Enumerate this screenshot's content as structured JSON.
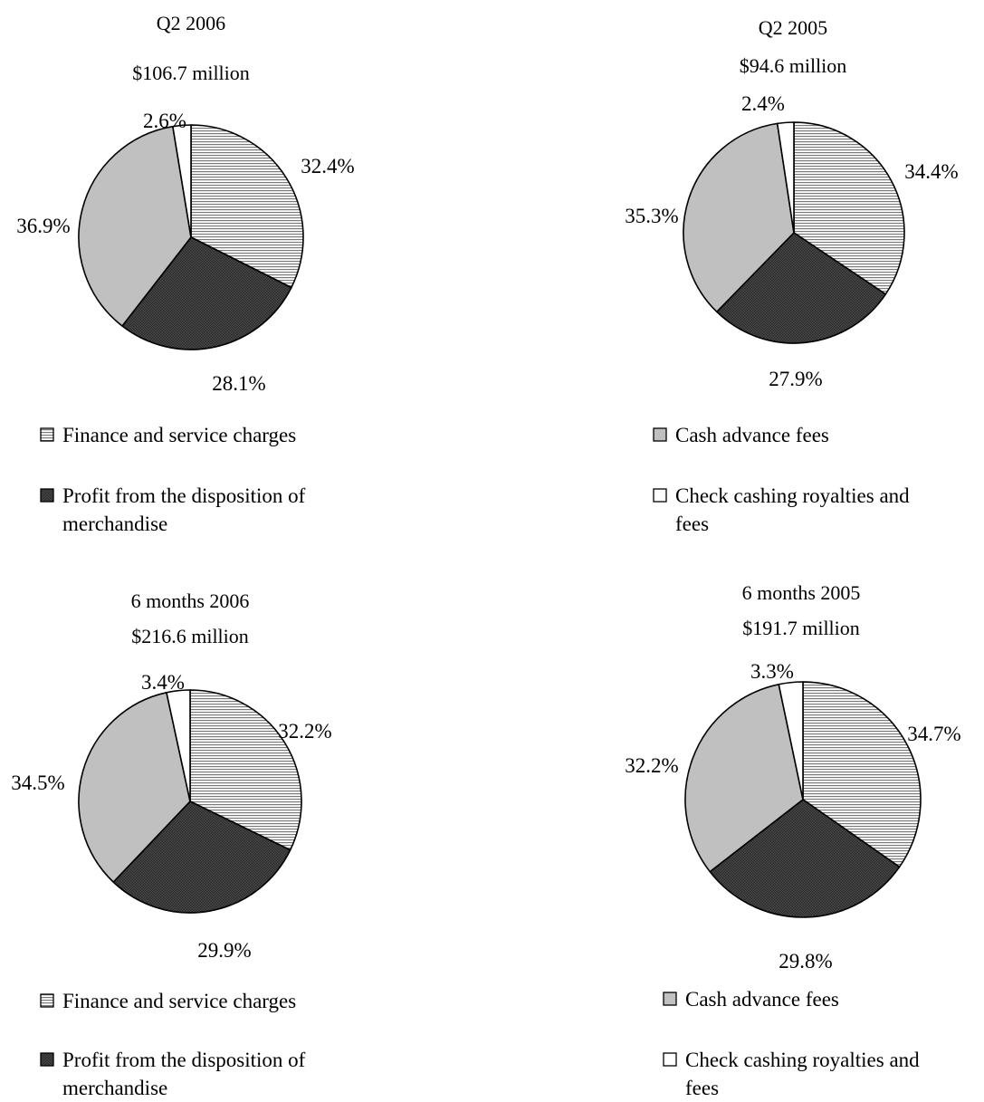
{
  "chart_data": [
    {
      "type": "pie",
      "title": "Q2 2006",
      "subtitle": "$106.7 million",
      "slices": [
        {
          "label": "Finance and service charges",
          "value": 32.4,
          "text": "32.4%"
        },
        {
          "label": "Profit from the disposition of merchandise",
          "value": 28.1,
          "text": "28.1%"
        },
        {
          "label": "Cash advance fees",
          "value": 36.9,
          "text": "36.9%"
        },
        {
          "label": "Check cashing royalties and fees",
          "value": 2.6,
          "text": "2.6%"
        }
      ]
    },
    {
      "type": "pie",
      "title": "Q2 2005",
      "subtitle": "$94.6 million",
      "slices": [
        {
          "label": "Finance and service charges",
          "value": 34.4,
          "text": "34.4%"
        },
        {
          "label": "Profit from the disposition of merchandise",
          "value": 27.9,
          "text": "27.9%"
        },
        {
          "label": "Cash advance fees",
          "value": 35.3,
          "text": "35.3%"
        },
        {
          "label": "Check cashing royalties and fees",
          "value": 2.4,
          "text": "2.4%"
        }
      ]
    },
    {
      "type": "pie",
      "title": "6 months 2006",
      "subtitle": "$216.6 million",
      "slices": [
        {
          "label": "Finance and service charges",
          "value": 32.2,
          "text": "32.2%"
        },
        {
          "label": "Profit from the disposition of merchandise",
          "value": 29.9,
          "text": "29.9%"
        },
        {
          "label": "Cash advance fees",
          "value": 34.5,
          "text": "34.5%"
        },
        {
          "label": "Check cashing royalties and fees",
          "value": 3.4,
          "text": "3.4%"
        }
      ]
    },
    {
      "type": "pie",
      "title": "6 months 2005",
      "subtitle": "$191.7 million",
      "slices": [
        {
          "label": "Finance and service charges",
          "value": 34.7,
          "text": "34.7%"
        },
        {
          "label": "Profit from the disposition of merchandise",
          "value": 29.8,
          "text": "29.8%"
        },
        {
          "label": "Cash advance fees",
          "value": 32.2,
          "text": "32.2%"
        },
        {
          "label": "Check cashing royalties and fees",
          "value": 3.3,
          "text": "3.3%"
        }
      ]
    }
  ],
  "legends": [
    {
      "items": [
        {
          "slice": 0,
          "lines": [
            "Finance and service charges"
          ]
        },
        {
          "slice": 1,
          "lines": [
            "Profit from the disposition of",
            "merchandise"
          ]
        },
        {
          "slice": 2,
          "lines": [
            "Cash advance fees"
          ]
        },
        {
          "slice": 3,
          "lines": [
            "Check cashing royalties and",
            "fees"
          ]
        }
      ]
    },
    {
      "items": [
        {
          "slice": 0,
          "lines": [
            "Finance and service charges"
          ]
        },
        {
          "slice": 1,
          "lines": [
            "Profit from the disposition of",
            "merchandise"
          ]
        },
        {
          "slice": 2,
          "lines": [
            "Cash advance fees"
          ]
        },
        {
          "slice": 3,
          "lines": [
            "Check cashing royalties and",
            "fees"
          ]
        }
      ]
    }
  ],
  "colors": {
    "finance_fill": "#ffffff",
    "finance_hatch": "#7a7a7a",
    "merch_fill": "#4a4a4a",
    "merch_hatch": "#2a2a2a",
    "cash_fill": "#c0c0c0",
    "check_fill": "#ffffff",
    "stroke": "#000000"
  }
}
